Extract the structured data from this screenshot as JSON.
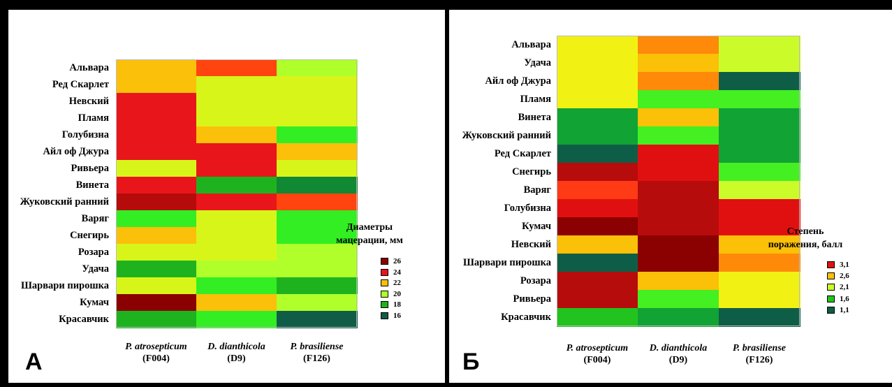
{
  "colors": {
    "c26": "#8b0000",
    "c25": "#b50b0b",
    "c24": "#e8161a",
    "c23": "#ff4410",
    "c22": "#fbc00a",
    "c21": "#d8f51a",
    "c20": "#b0ff2a",
    "c19": "#33ee22",
    "c18": "#1eb31e",
    "c17": "#118833",
    "c16": "#0f5d47",
    "b31": "#e11010",
    "b29": "#b70c0c",
    "b33": "#8b0000",
    "b28": "#ff3b15",
    "b26": "#fbc008",
    "b24": "#ff8a0a",
    "b22": "#f1f213",
    "b21": "#ccfb2a",
    "b19": "#44ef22",
    "b17": "#22c31f",
    "b16": "#11a333",
    "b11": "#0e5e47"
  },
  "chart_data": [
    {
      "type": "heatmap",
      "panel_label": "А",
      "rows": [
        "Альвара",
        "Ред Скарлет",
        "Невский",
        "Пламя",
        "Голубизна",
        "Айл оф Джура",
        "Ривьера",
        "Винета",
        "Жуковский ранний",
        "Варяг",
        "Снегирь",
        "Розара",
        "Удача",
        "Шарвари пирошка",
        "Кумач",
        "Красавчик"
      ],
      "columns": [
        {
          "name": "P. atrosepticum",
          "strain": "(F004)"
        },
        {
          "name": "D. dianthicola",
          "strain": "(D9)"
        },
        {
          "name": "P. brasiliense",
          "strain": "(F126)"
        }
      ],
      "values": [
        [
          22,
          23,
          20
        ],
        [
          22,
          21,
          21
        ],
        [
          24,
          21,
          21
        ],
        [
          24,
          21,
          21
        ],
        [
          24,
          22,
          19
        ],
        [
          24,
          24,
          22
        ],
        [
          21,
          24,
          21
        ],
        [
          24,
          18,
          17
        ],
        [
          25,
          24,
          23
        ],
        [
          19,
          21,
          19
        ],
        [
          22,
          21,
          19
        ],
        [
          21,
          21,
          20
        ],
        [
          18,
          20,
          20
        ],
        [
          21,
          19,
          18
        ],
        [
          26,
          22,
          20
        ],
        [
          18,
          19,
          16
        ]
      ],
      "legend_title": [
        "Диаметры",
        "мацерации, мм"
      ],
      "legend": [
        {
          "label": "26",
          "color": "#8b0000"
        },
        {
          "label": "24",
          "color": "#e8161a"
        },
        {
          "label": "22",
          "color": "#fbc00a"
        },
        {
          "label": "20",
          "color": "#b0ff2a"
        },
        {
          "label": "18",
          "color": "#1eb31e"
        },
        {
          "label": "16",
          "color": "#0f5d47"
        }
      ]
    },
    {
      "type": "heatmap",
      "panel_label": "Б",
      "rows": [
        "Альвара",
        "Удача",
        "Айл оф Джура",
        "Пламя",
        "Винета",
        "Жуковский ранний",
        "Ред Скарлет",
        "Снегирь",
        "Варяг",
        "Голубизна",
        "Кумач",
        "Невский",
        "Шарвари пирошка",
        "Розара",
        "Ривьера",
        "Красавчик"
      ],
      "columns": [
        {
          "name": "P. atrosepticum",
          "strain": "(F004)"
        },
        {
          "name": "D. dianthicola",
          "strain": "(D9)"
        },
        {
          "name": "P. brasiliense",
          "strain": "(F126)"
        }
      ],
      "values": [
        [
          2.2,
          2.4,
          2.1
        ],
        [
          2.2,
          2.6,
          2.1
        ],
        [
          2.2,
          2.4,
          1.1
        ],
        [
          2.2,
          1.9,
          1.9
        ],
        [
          1.6,
          2.6,
          1.6
        ],
        [
          1.6,
          1.9,
          1.6
        ],
        [
          1.1,
          3.1,
          1.6
        ],
        [
          2.9,
          3.1,
          1.9
        ],
        [
          2.8,
          2.9,
          2.1
        ],
        [
          3.1,
          2.9,
          3.1
        ],
        [
          3.3,
          2.9,
          3.1
        ],
        [
          2.6,
          3.3,
          2.6
        ],
        [
          1.1,
          3.3,
          2.4
        ],
        [
          2.9,
          2.6,
          2.2
        ],
        [
          2.9,
          1.9,
          2.2
        ],
        [
          1.7,
          1.6,
          1.1
        ]
      ],
      "legend_title": [
        "Степень",
        "поражения, балл"
      ],
      "legend": [
        {
          "label": "3,1",
          "color": "#e11010"
        },
        {
          "label": "2,6",
          "color": "#fbc008"
        },
        {
          "label": "2,1",
          "color": "#ccfb2a"
        },
        {
          "label": "1,6",
          "color": "#22c31f"
        },
        {
          "label": "1,1",
          "color": "#0e5e47"
        }
      ]
    }
  ]
}
